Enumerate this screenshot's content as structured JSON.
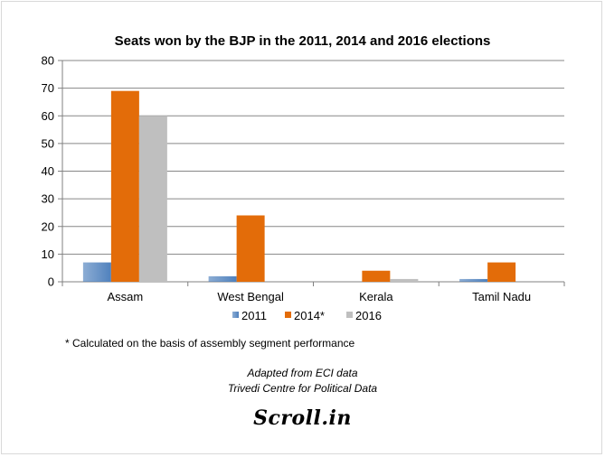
{
  "chart_data": {
    "type": "bar",
    "title": "Seats won by the BJP in the 2011, 2014 and 2016 elections",
    "categories": [
      "Assam",
      "West Bengal",
      "Kerala",
      "Tamil Nadu"
    ],
    "series": [
      {
        "name": "2011",
        "values": [
          7,
          2,
          0,
          1
        ],
        "color": "#4f81bd"
      },
      {
        "name": "2014*",
        "values": [
          69,
          24,
          4,
          7
        ],
        "color": "#e36c09"
      },
      {
        "name": "2016",
        "values": [
          60,
          0,
          1,
          0
        ],
        "color": "#bfbfbf"
      }
    ],
    "ylim": [
      0,
      80
    ],
    "yticks": [
      0,
      10,
      20,
      30,
      40,
      50,
      60,
      70,
      80
    ],
    "grid": true,
    "legend": "bottom"
  },
  "footnote": "* Calculated on the basis of assembly segment performance",
  "source_line1": "Adapted from ECI data",
  "source_line2": "Trivedi Centre for Political Data",
  "logo_text": "Scroll.in"
}
